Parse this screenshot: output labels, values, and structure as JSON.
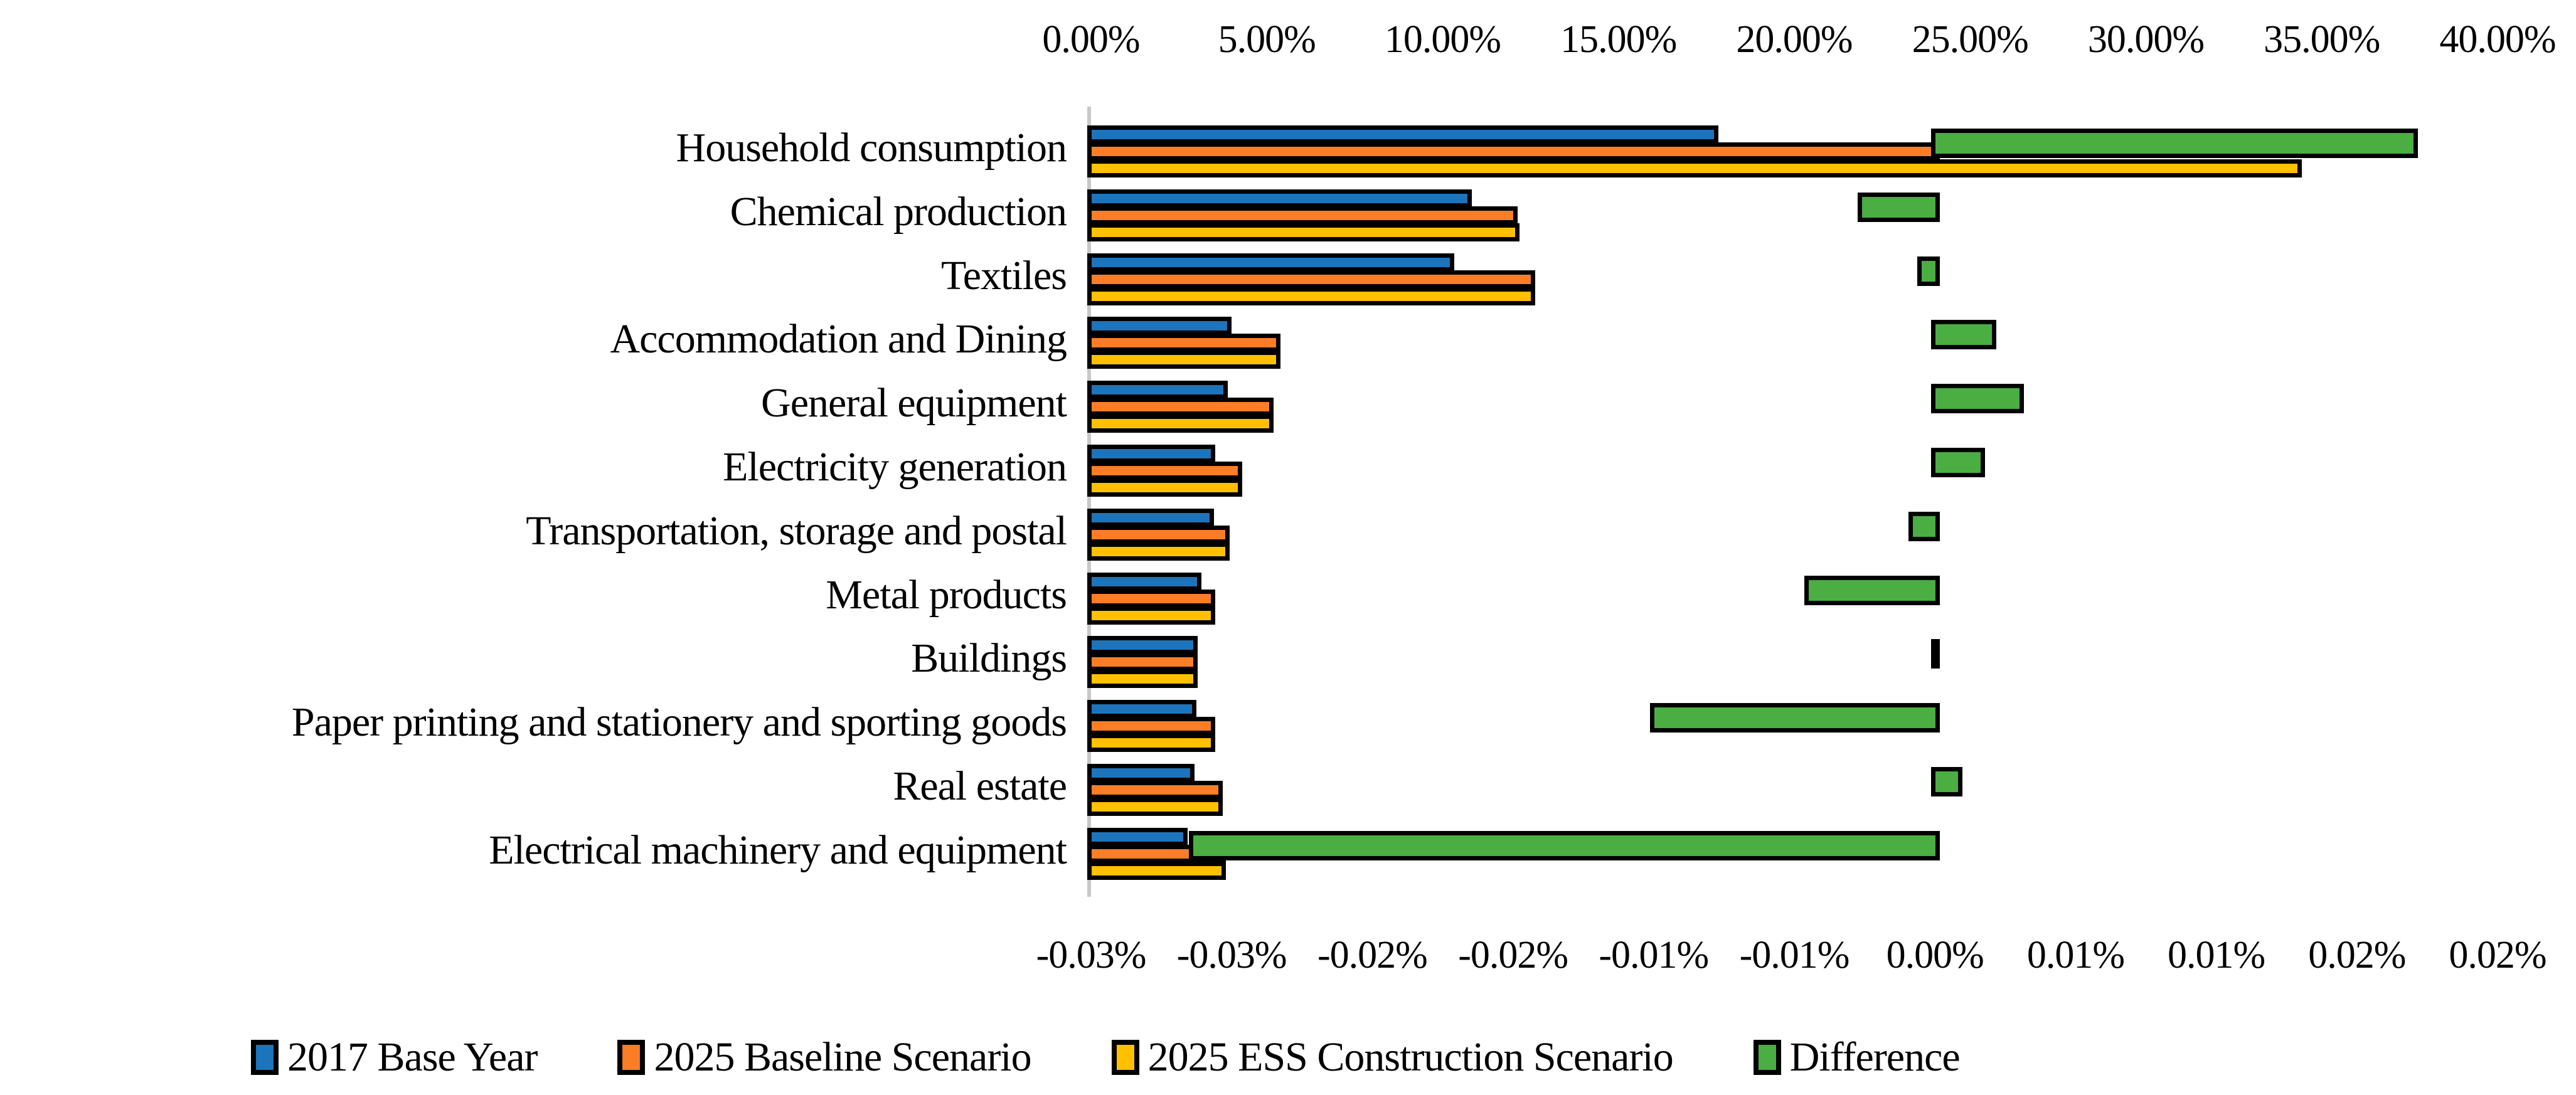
{
  "chart_data": {
    "type": "bar",
    "orientation": "horizontal",
    "title": "",
    "categories": [
      "Household consumption",
      "Chemical production",
      "Textiles",
      "Accommodation and Dining",
      "General equipment",
      "Electricity generation",
      "Transportation, storage and postal",
      "Metal products",
      "Buildings",
      "Paper printing and stationery and sporting goods",
      "Real estate",
      "Electrical machinery and equipment"
    ],
    "series": [
      {
        "name": "2017 Base Year",
        "axis": "top",
        "color": "#1C75BC",
        "values": [
          17.7,
          10.7,
          10.2,
          3.85,
          3.75,
          3.4,
          3.35,
          3.0,
          2.9,
          2.85,
          2.8,
          2.6
        ]
      },
      {
        "name": "2025 Baseline Scenario",
        "axis": "top",
        "color": "#FB7D25",
        "values": [
          24.0,
          12.0,
          12.5,
          5.25,
          5.05,
          4.15,
          3.8,
          3.4,
          2.9,
          3.4,
          3.6,
          3.7
        ]
      },
      {
        "name": "2025 ESS Construction Scenario",
        "axis": "top",
        "color": "#FFC000",
        "values": [
          34.3,
          12.05,
          12.5,
          5.25,
          5.05,
          4.15,
          3.8,
          3.4,
          2.9,
          3.4,
          3.6,
          3.7
        ]
      },
      {
        "name": "Difference",
        "axis": "bottom",
        "color": "#4AAE43",
        "values": [
          0.017,
          -0.0026,
          -0.0005,
          0.002,
          0.003,
          0.0016,
          -0.0008,
          -0.0045,
          0.0,
          -0.01,
          0.0008,
          -0.0264
        ]
      }
    ],
    "top_axis": {
      "range": [
        0,
        40
      ],
      "unit": "%",
      "ticks": [
        "0.00%",
        "5.00%",
        "10.00%",
        "15.00%",
        "20.00%",
        "25.00%",
        "30.00%",
        "35.00%",
        "40.00%"
      ]
    },
    "bottom_axis": {
      "range": [
        -0.03,
        0.02
      ],
      "unit": "%",
      "ticks": [
        "-0.03%",
        "-0.03%",
        "-0.02%",
        "-0.02%",
        "-0.01%",
        "-0.01%",
        "0.00%",
        "0.01%",
        "0.01%",
        "0.02%",
        "0.02%"
      ]
    },
    "legend": {
      "position": "bottom",
      "entries": [
        "2017 Base Year",
        "2025 Baseline Scenario",
        "2025 ESS Construction Scenario",
        "Difference"
      ]
    },
    "style": {
      "bar_border_color": "#000000",
      "axis_line_color": "#C8C8C8",
      "background": "#FFFFFF",
      "grid": "off"
    }
  }
}
